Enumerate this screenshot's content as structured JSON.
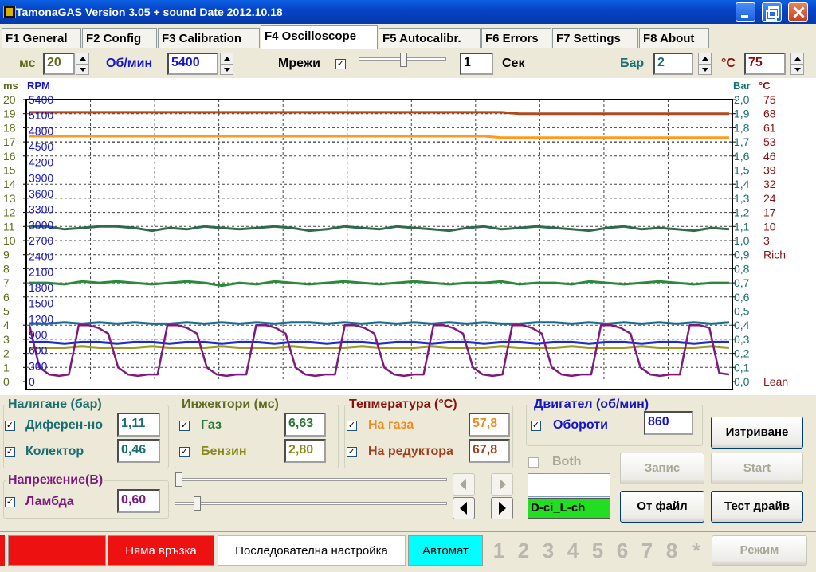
{
  "window": {
    "title": "TamonaGAS  Version 3.05 + sound  Date 2012.10.18"
  },
  "tabs": [
    {
      "label": "F1 General"
    },
    {
      "label": "F2 Config"
    },
    {
      "label": "F3 Calibration"
    },
    {
      "label": "F4 Oscilloscope"
    },
    {
      "label": "F5 Autocalibr."
    },
    {
      "label": "F6 Errors"
    },
    {
      "label": "F7 Settings"
    },
    {
      "label": "F8 About"
    }
  ],
  "header": {
    "ms_label": "мс",
    "ms_value": "20",
    "rpm_label": "Об/мин",
    "rpm_value": "5400",
    "grid_label": "Мрежи",
    "grid_checked": "✓",
    "sec_value": "1",
    "sec_label": "Сек",
    "bar_label": "Бар",
    "bar_value": "2",
    "temp_label": "°C",
    "temp_value": "75"
  },
  "chart_data": {
    "type": "line",
    "axis_units": {
      "ms": "ms",
      "rpm": "RPM",
      "bar": "Bar",
      "temp": "°C"
    },
    "ms_ticks": [
      "20",
      "19",
      "18",
      "17",
      "16",
      "15",
      "14",
      "13",
      "12",
      "11",
      "10",
      "9",
      "8",
      "7",
      "6",
      "5",
      "4",
      "3",
      "2",
      "1",
      "0"
    ],
    "rpm_ticks": [
      "5400",
      "5100",
      "4800",
      "4500",
      "4200",
      "3900",
      "3600",
      "3300",
      "3000",
      "2700",
      "2400",
      "2100",
      "1800",
      "1500",
      "1200",
      "900",
      "600",
      "300",
      "0"
    ],
    "bar_ticks": [
      "2,0",
      "1,9",
      "1,8",
      "1,7",
      "1,6",
      "1,5",
      "1,4",
      "1,3",
      "1,2",
      "1,1",
      "1,0",
      "0,9",
      "0,8",
      "0,7",
      "0,6",
      "0,5",
      "0,4",
      "0,3",
      "0,2",
      "0,1",
      "0,0"
    ],
    "temp_ticks": [
      "75",
      "68",
      "61",
      "53",
      "46",
      "39",
      "32",
      "24",
      "17",
      "10",
      "3",
      "Rich",
      "",
      "",
      "",
      "",
      "",
      "",
      "",
      "",
      "Lean"
    ],
    "ms_range": [
      0,
      20
    ],
    "bar_range": [
      0,
      2.0
    ],
    "grid": true,
    "series": [
      {
        "color": "#b04a1e",
        "unit": "bar",
        "values": [
          1.91,
          1.91,
          1.91,
          1.91,
          1.91,
          1.91,
          1.91,
          1.91,
          1.91,
          1.91,
          1.91,
          1.91,
          1.91,
          1.91,
          1.91,
          1.91,
          1.91,
          1.91,
          1.91,
          1.91,
          1.91,
          1.91,
          1.91,
          1.91,
          1.91,
          1.91,
          1.91,
          1.91,
          1.9,
          1.9,
          1.9,
          1.9,
          1.9,
          1.9,
          1.9,
          1.9,
          1.9,
          1.9,
          1.9,
          1.9,
          1.9
        ]
      },
      {
        "color": "#ff9a1e",
        "unit": "bar",
        "values": [
          1.74,
          1.74,
          1.74,
          1.74,
          1.74,
          1.74,
          1.74,
          1.74,
          1.74,
          1.74,
          1.74,
          1.74,
          1.74,
          1.74,
          1.74,
          1.74,
          1.74,
          1.74,
          1.74,
          1.74,
          1.74,
          1.74,
          1.74,
          1.74,
          1.74,
          1.74,
          1.74,
          1.73,
          1.73,
          1.73,
          1.73,
          1.73,
          1.73,
          1.73,
          1.73,
          1.73,
          1.73,
          1.73,
          1.73,
          1.73,
          1.73
        ]
      },
      {
        "color": "#2e6b4c",
        "unit": "bar",
        "values": [
          1.1,
          1.1,
          1.08,
          1.09,
          1.1,
          1.1,
          1.09,
          1.07,
          1.09,
          1.08,
          1.1,
          1.09,
          1.08,
          1.09,
          1.1,
          1.09,
          1.07,
          1.08,
          1.1,
          1.09,
          1.08,
          1.1,
          1.09,
          1.08,
          1.07,
          1.09,
          1.1,
          1.08,
          1.09,
          1.1,
          1.09,
          1.08,
          1.07,
          1.09,
          1.1,
          1.08,
          1.09,
          1.08,
          1.07,
          1.09,
          1.08
        ]
      },
      {
        "color": "#2b8a3a",
        "unit": "bar",
        "values": [
          0.7,
          0.7,
          0.69,
          0.71,
          0.7,
          0.71,
          0.7,
          0.69,
          0.7,
          0.71,
          0.7,
          0.68,
          0.7,
          0.69,
          0.71,
          0.7,
          0.69,
          0.7,
          0.71,
          0.7,
          0.69,
          0.7,
          0.71,
          0.7,
          0.69,
          0.7,
          0.7,
          0.71,
          0.69,
          0.7,
          0.7,
          0.69,
          0.71,
          0.7,
          0.69,
          0.7,
          0.71,
          0.7,
          0.69,
          0.7,
          0.7
        ]
      },
      {
        "color": "#1a6d8a",
        "unit": "bar",
        "values": [
          0.41,
          0.41,
          0.42,
          0.41,
          0.42,
          0.41,
          0.42,
          0.41,
          0.41,
          0.42,
          0.41,
          0.42,
          0.41,
          0.42,
          0.41,
          0.42,
          0.42,
          0.41,
          0.42,
          0.41,
          0.42,
          0.41,
          0.42,
          0.41,
          0.42,
          0.41,
          0.42,
          0.41,
          0.41,
          0.42,
          0.42,
          0.41,
          0.42,
          0.41,
          0.42,
          0.41,
          0.42,
          0.41,
          0.42,
          0.41,
          0.42
        ]
      },
      {
        "color": "#1c28d0",
        "unit": "bar",
        "values": [
          0.28,
          0.28,
          0.27,
          0.28,
          0.28,
          0.27,
          0.28,
          0.28,
          0.27,
          0.28,
          0.28,
          0.27,
          0.28,
          0.28,
          0.27,
          0.28,
          0.28,
          0.27,
          0.28,
          0.28,
          0.27,
          0.28,
          0.28,
          0.27,
          0.28,
          0.28,
          0.27,
          0.28,
          0.28,
          0.27,
          0.28,
          0.28,
          0.27,
          0.28,
          0.28,
          0.27,
          0.28,
          0.28,
          0.27,
          0.28,
          0.28
        ]
      },
      {
        "color": "#9a9a22",
        "unit": "bar",
        "values": [
          0.24,
          0.24,
          0.24,
          0.25,
          0.24,
          0.24,
          0.24,
          0.25,
          0.24,
          0.24,
          0.24,
          0.25,
          0.24,
          0.24,
          0.24,
          0.25,
          0.24,
          0.24,
          0.24,
          0.25,
          0.24,
          0.24,
          0.24,
          0.25,
          0.24,
          0.24,
          0.24,
          0.25,
          0.24,
          0.24,
          0.24,
          0.25,
          0.24,
          0.24,
          0.24,
          0.25,
          0.24,
          0.24,
          0.24,
          0.25,
          0.24
        ]
      },
      {
        "color": "#7d1a7d",
        "unit": "bar",
        "values": [
          0.4,
          0.1,
          0.05,
          0.04,
          0.05,
          0.4,
          0.4,
          0.38,
          0.34,
          0.1,
          0.05,
          0.04,
          0.05,
          0.05,
          0.4,
          0.4,
          0.38,
          0.34,
          0.1,
          0.05,
          0.04,
          0.05,
          0.05,
          0.4,
          0.4,
          0.38,
          0.34,
          0.1,
          0.05,
          0.04,
          0.05,
          0.05,
          0.4,
          0.4,
          0.38,
          0.34,
          0.1,
          0.05,
          0.04,
          0.05,
          0.05,
          0.4,
          0.4,
          0.38,
          0.34,
          0.1,
          0.05,
          0.04,
          0.05,
          0.4,
          0.4,
          0.38,
          0.34,
          0.1,
          0.05,
          0.04,
          0.05,
          0.05,
          0.4,
          0.4,
          0.38,
          0.34,
          0.1,
          0.05,
          0.04,
          0.05,
          0.05,
          0.4,
          0.4,
          0.38,
          0.06,
          0.05
        ]
      }
    ]
  },
  "pressure_group": {
    "title": "Налягане (бар)",
    "diff_label": "Диферен-но",
    "diff_value": "1,11",
    "manifold_label": "Колектор",
    "manifold_value": "0,46"
  },
  "voltage_group": {
    "title": "Напрежение(В)",
    "lambda_label": "Ламбда",
    "lambda_value": "0,60"
  },
  "injectors_group": {
    "title": "Инжектори (мс)",
    "gas_label": "Газ",
    "gas_value": "6,63",
    "petrol_label": "Бензин",
    "petrol_value": "2,80"
  },
  "temperature_group": {
    "title": "Тепмература (°C)",
    "gas_label": "На газа",
    "gas_value": "57,8",
    "reducer_label": "На редуктора",
    "reducer_value": "67,8"
  },
  "engine_group": {
    "title": "Двигател (об/мин)",
    "rpm_label": "Обороти",
    "rpm_value": "860"
  },
  "controls": {
    "both_label": "Both",
    "record_label": "Запис",
    "start_label": "Start",
    "erase_label": "Изтриване",
    "from_file_label": "От файл",
    "test_drive_label": "Тест драйв",
    "file_name": "D-ci_L-ch"
  },
  "statusbar": {
    "connection": "Няма връзка",
    "sequential": "Последователна настройка",
    "mode_auto": "Автомат",
    "numbers": [
      "1",
      "2",
      "3",
      "4",
      "5",
      "6",
      "7",
      "8",
      "*"
    ],
    "mode_button": "Режим"
  },
  "colors": {
    "title_bar": "#0542c7",
    "status_red": "#ee1111",
    "auto_cyan": "#00ffff",
    "file_green": "#22dd22",
    "rpm_blue": "#1414c8",
    "bar_teal": "#1a6d70",
    "temp_brown": "#8a1010"
  }
}
